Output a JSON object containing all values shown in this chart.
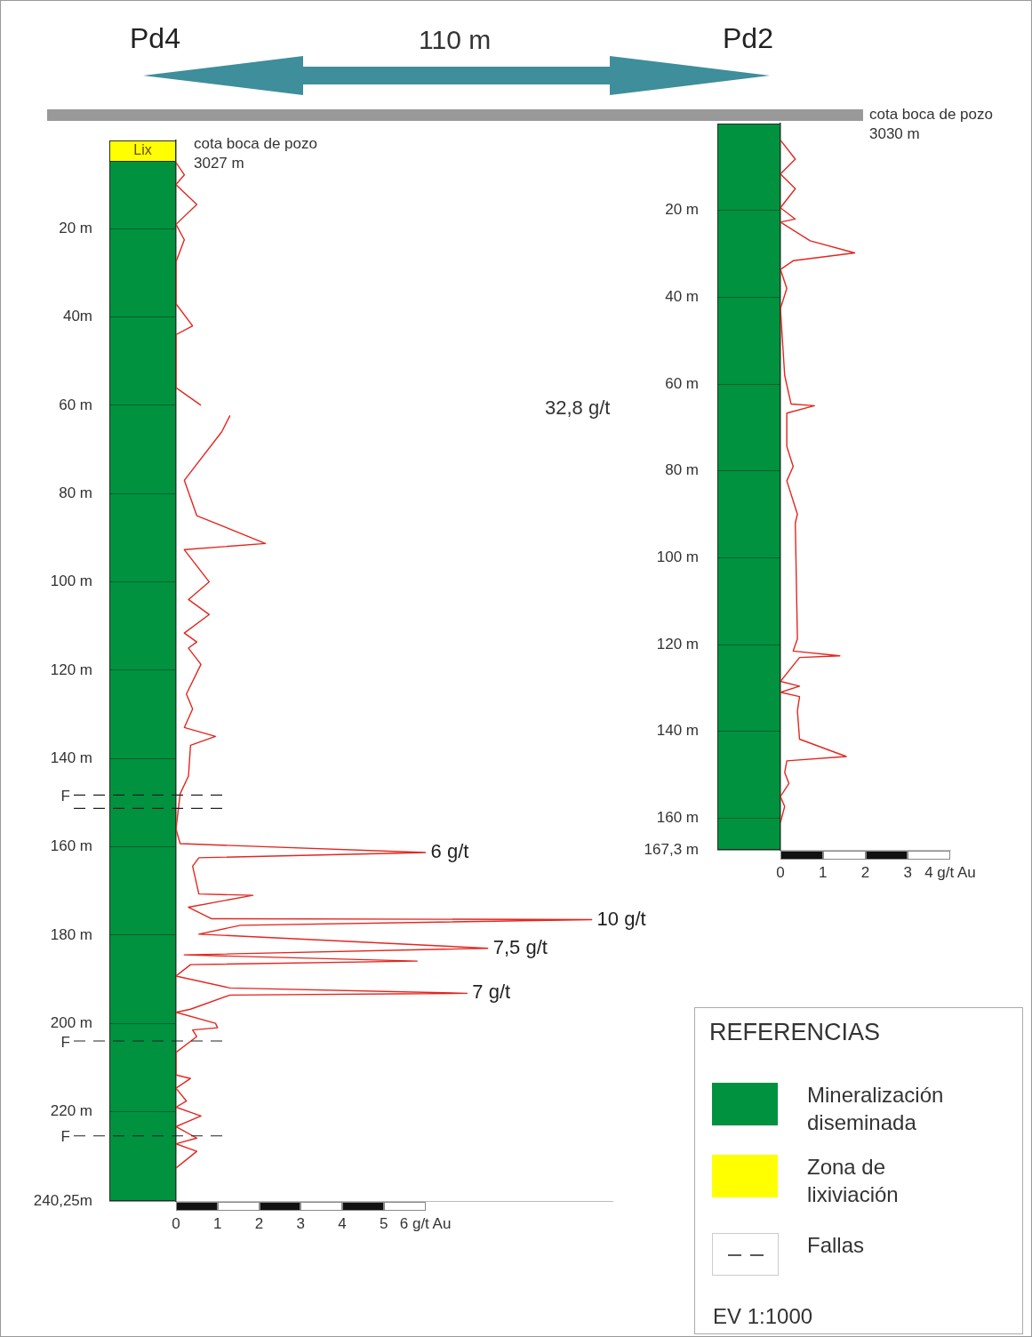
{
  "chart_data": [
    {
      "type": "line",
      "orientation": "horizontal",
      "title": "Pd4",
      "marker": "none",
      "color": "#e3261f",
      "x": [
        5,
        7.8,
        10,
        14.5,
        19,
        22.5,
        27.5,
        37,
        42,
        44,
        56,
        60,
        61,
        62.3,
        66,
        77,
        85,
        91.3,
        92.7,
        100,
        104,
        107.4,
        111.6,
        113.6,
        115,
        118.7,
        125.4,
        128.8,
        133,
        135,
        137,
        144,
        148,
        156,
        159.3,
        161.3,
        162.5,
        164.4,
        170.7,
        171,
        173.7,
        176.3,
        176.5,
        177.8,
        179.8,
        183,
        184.5,
        185.9,
        186.7,
        189.3,
        192,
        193.2,
        193.6,
        196.8,
        197.5,
        200,
        201,
        201.5,
        203,
        206.6,
        211.7,
        212.5,
        214.7,
        217.6,
        219,
        221,
        223.4,
        226,
        227.3,
        229,
        232.8
      ],
      "values": [
        0,
        0.2,
        0,
        0.5,
        0,
        0.2,
        0,
        0,
        0.4,
        0,
        0,
        0.6,
        null,
        1.3,
        1.1,
        0.2,
        0.5,
        2.15,
        0.2,
        0.8,
        0.3,
        0.8,
        0.2,
        0.5,
        0.3,
        0.6,
        0.25,
        0.4,
        0.2,
        0.95,
        0.35,
        0.3,
        0.1,
        0,
        0.1,
        6,
        0.55,
        0.4,
        0.55,
        1.85,
        0.3,
        0.85,
        10,
        1.55,
        0.55,
        7.5,
        0.2,
        5.8,
        0.35,
        0,
        1.3,
        7,
        1.3,
        0.35,
        0,
        0.95,
        1,
        0.4,
        0.5,
        0,
        0,
        0.35,
        0,
        0.25,
        0,
        0.6,
        0,
        0.5,
        0,
        0.5,
        0
      ],
      "value_labels": [
        null,
        null,
        null,
        null,
        null,
        null,
        null,
        null,
        null,
        null,
        null,
        null,
        null,
        null,
        null,
        null,
        null,
        null,
        null,
        null,
        null,
        null,
        null,
        null,
        null,
        null,
        null,
        null,
        null,
        null,
        null,
        null,
        null,
        null,
        null,
        "6 g/t",
        null,
        null,
        null,
        null,
        null,
        null,
        "10 g/t",
        null,
        null,
        "7,5 g/t",
        null,
        null,
        null,
        null,
        null,
        "7 g/t",
        null,
        null,
        null,
        null,
        null,
        null,
        null,
        null,
        null,
        null,
        null,
        null,
        null,
        null,
        null,
        null,
        null,
        null,
        null
      ],
      "xlim": [
        0,
        10.5
      ],
      "xticks": [
        0,
        1,
        2,
        3,
        4,
        5,
        {
          "value": 6,
          "label": "6 g/t Au"
        }
      ],
      "ylim": [
        240.25,
        0
      ],
      "yticks": [
        {
          "value": 20,
          "label": "20 m"
        },
        {
          "value": 40,
          "label": "40m"
        },
        {
          "value": 60,
          "label": "60 m"
        },
        {
          "value": 80,
          "label": "80 m"
        },
        {
          "value": 100,
          "label": "100 m"
        },
        {
          "value": 120,
          "label": "120 m"
        },
        {
          "value": 140,
          "label": "140 m"
        },
        {
          "value": 160,
          "label": "160 m"
        },
        {
          "value": 180,
          "label": "180 m"
        },
        {
          "value": 200,
          "label": "200 m"
        },
        {
          "value": 220,
          "label": "220 m"
        },
        {
          "value": 240.25,
          "label": "240,25m"
        }
      ],
      "ref_lines": [
        {
          "axis": "y",
          "value": 148.3,
          "label": "F",
          "line_style": "dashed",
          "color": "#222222"
        },
        {
          "axis": "y",
          "value": 151.3,
          "line_style": "dashed",
          "color": "#222222"
        },
        {
          "axis": "y",
          "value": 204,
          "label": "F",
          "line_style": "dashed",
          "color": "#222222"
        },
        {
          "axis": "y",
          "value": 225.5,
          "label": "F",
          "line_style": "dashed",
          "color": "#222222"
        }
      ],
      "annotations": [
        "cota boca de pozo\n3027 m",
        "110 m",
        "Lix",
        "32,8 g/t"
      ]
    },
    {
      "type": "line",
      "orientation": "horizontal",
      "title": "Pd2",
      "marker": "none",
      "color": "#e3261f",
      "x": [
        3.8,
        8.2,
        11.6,
        15,
        19.4,
        22,
        22.7,
        27,
        29.8,
        31.6,
        33.6,
        38,
        42.6,
        58,
        64.6,
        65,
        66.7,
        74.4,
        79,
        82.3,
        90,
        92,
        118.7,
        121.5,
        122.6,
        123,
        128.5,
        129.6,
        131,
        132,
        135.3,
        141.8,
        145.8,
        146.8,
        149.5,
        152,
        155,
        157.3,
        161
      ],
      "values": [
        0,
        0.35,
        0,
        0.35,
        0,
        0.35,
        0,
        0.7,
        1.75,
        0.3,
        0,
        0.15,
        0,
        0.1,
        0.25,
        0.8,
        0.15,
        0.15,
        0.3,
        0.15,
        0.4,
        0.35,
        0.4,
        0.3,
        1.4,
        0.45,
        0,
        0.45,
        0,
        0.45,
        0.4,
        0.45,
        1.55,
        0.15,
        0.1,
        0.2,
        0,
        0.1,
        0
      ],
      "xlim": [
        0,
        4
      ],
      "xticks": [
        0,
        1,
        2,
        3,
        {
          "value": 4,
          "label": "4 g/t Au"
        }
      ],
      "ylim": [
        167.3,
        0
      ],
      "yticks": [
        {
          "value": 20,
          "label": "20 m"
        },
        {
          "value": 40,
          "label": "40 m"
        },
        {
          "value": 60,
          "label": "60 m"
        },
        {
          "value": 80,
          "label": "80 m"
        },
        {
          "value": 100,
          "label": "100 m"
        },
        {
          "value": 120,
          "label": "120 m"
        },
        {
          "value": 140,
          "label": "140 m"
        },
        {
          "value": 160,
          "label": "160 m"
        },
        {
          "value": 167.3,
          "label": "167,3 m"
        }
      ],
      "annotations": [
        "cota boca de pozo\n3030 m"
      ]
    },
    {
      "type": "other",
      "title": "REFERENCIAS",
      "colors": [
        "#00923f",
        "#ffff00",
        null
      ],
      "annotations": [
        "Mineralización diseminada",
        "Zona de lixiviación",
        "Fallas",
        "EV 1:1000"
      ]
    }
  ]
}
